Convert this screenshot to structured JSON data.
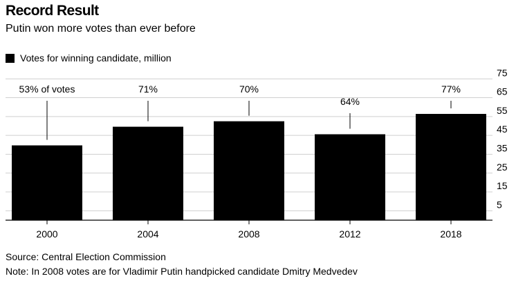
{
  "header": {
    "title": "Record Result",
    "subtitle": "Putin won more votes than ever before"
  },
  "legend": {
    "label": "Votes for winning candidate, million",
    "color": "#000000"
  },
  "footer": {
    "source": "Source: Central Election Commission",
    "note": "Note: In 2008 votes are for Vladimir Putin handpicked candidate Dmitry Medvedev"
  },
  "chart_data": {
    "type": "bar",
    "categories": [
      "2000",
      "2004",
      "2008",
      "2012",
      "2018"
    ],
    "series": [
      {
        "name": "Votes for winning candidate, million",
        "values": [
          39.7,
          49.6,
          52.5,
          45.6,
          56.4
        ]
      }
    ],
    "annotations": [
      "53% of votes",
      "71%",
      "70%",
      "64%",
      "77%"
    ],
    "y_ticks": [
      5,
      15,
      25,
      35,
      45,
      55,
      65,
      75
    ],
    "ylim": [
      0,
      75
    ],
    "y_axis_side": "right",
    "bar_color": "#000000",
    "grid": true,
    "legend_position": "top-left",
    "title": "Record Result",
    "xlabel": "",
    "ylabel": ""
  }
}
